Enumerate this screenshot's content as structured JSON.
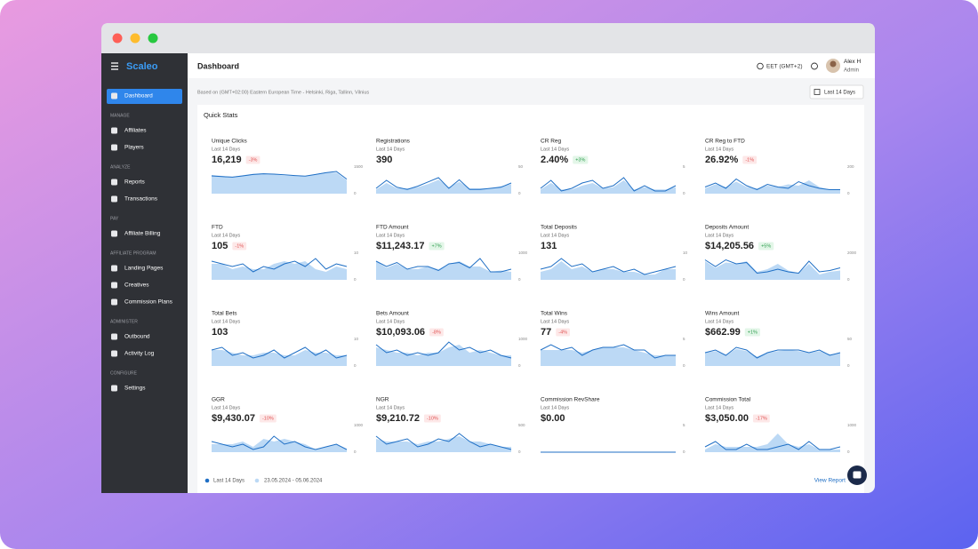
{
  "brand": "Scaleo",
  "nav": [
    {
      "items": [
        "Dashboard"
      ]
    },
    {
      "label": "MANAGE",
      "items": [
        "Affiliates",
        "Players"
      ]
    },
    {
      "label": "ANALYZE",
      "items": [
        "Reports",
        "Transactions"
      ]
    },
    {
      "label": "PAY",
      "items": [
        "Affiliate Billing"
      ]
    },
    {
      "label": "AFFILIATE PROGRAM",
      "items": [
        "Landing Pages",
        "Creatives",
        "Commission Plans"
      ]
    },
    {
      "label": "ADMINISTER",
      "items": [
        "Outbound",
        "Activity Log"
      ]
    },
    {
      "label": "CONFIGURE",
      "items": [
        "Settings"
      ]
    }
  ],
  "header": {
    "title": "Dashboard",
    "timezone": "EET (GMT+2)",
    "user": {
      "name": "Alex H",
      "role": "Admin"
    }
  },
  "subheader": {
    "note": "Based on (GMT+02:00) Eastern European Time - Helsinki, Riga, Tallinn, Vilnius",
    "range_button": "Last 14 Days"
  },
  "quick_stats": {
    "title": "Quick Stats",
    "cards": [
      {
        "title": "Unique Clicks",
        "period": "Last 14 Days",
        "value": "16,219",
        "change": "-3%",
        "yticks": [
          0,
          1500
        ],
        "line": [
          1000,
          960,
          930,
          1000,
          1080,
          1120,
          1100,
          1060,
          1020,
          990,
          1080,
          1180,
          1250,
          820
        ],
        "area": [
          1050,
          1000,
          950,
          1040,
          1120,
          1150,
          1090,
          1020,
          1000,
          960,
          1100,
          1200,
          1180,
          760
        ]
      },
      {
        "title": "Registrations",
        "period": "Last 14 Days",
        "value": "390",
        "yticks": [
          0,
          50
        ],
        "line": [
          10,
          25,
          12,
          8,
          14,
          22,
          30,
          10,
          26,
          8,
          8,
          10,
          12,
          20
        ],
        "area": [
          8,
          20,
          10,
          10,
          12,
          18,
          26,
          12,
          22,
          10,
          10,
          10,
          14,
          18
        ]
      },
      {
        "title": "CR Reg",
        "period": "Last 14 Days",
        "value": "2.40%",
        "change": "+3%",
        "yticks": [
          0,
          5
        ],
        "line": [
          1,
          2.5,
          0.5,
          1,
          2,
          2.5,
          1,
          1.5,
          3,
          0.5,
          1.5,
          0.5,
          0.5,
          1.5
        ],
        "area": [
          0.8,
          2,
          0.8,
          0.8,
          1.5,
          2,
          1,
          1.2,
          2.5,
          0.8,
          1.2,
          0.8,
          0.8,
          1.2
        ]
      },
      {
        "title": "CR Reg to FTD",
        "period": "Last 14 Days",
        "value": "26.92%",
        "change": "-1%",
        "yticks": [
          0,
          200
        ],
        "line": [
          50,
          80,
          40,
          110,
          60,
          30,
          70,
          50,
          40,
          90,
          60,
          40,
          30,
          30
        ],
        "area": [
          40,
          70,
          50,
          90,
          50,
          40,
          60,
          50,
          70,
          60,
          100,
          50,
          30,
          30
        ]
      },
      {
        "title": "FTD",
        "period": "Last 14 Days",
        "value": "105",
        "change": "-1%",
        "yticks": [
          0,
          10
        ],
        "line": [
          7,
          6,
          5,
          6,
          3,
          5,
          4,
          6,
          7,
          5,
          8,
          4,
          6,
          5
        ],
        "area": [
          6,
          6,
          4,
          5,
          4,
          4,
          6,
          7,
          6,
          7,
          4,
          3,
          5,
          4
        ]
      },
      {
        "title": "FTD Amount",
        "period": "Last 14 Days",
        "value": "$11,243.17",
        "change": "+7%",
        "yticks": [
          0,
          1000
        ],
        "line": [
          700,
          500,
          650,
          400,
          500,
          500,
          350,
          600,
          650,
          450,
          800,
          300,
          300,
          400
        ],
        "area": [
          700,
          450,
          600,
          400,
          400,
          500,
          400,
          600,
          700,
          500,
          500,
          300,
          350,
          300
        ]
      },
      {
        "title": "Total Deposits",
        "period": "Last 14 Days",
        "value": "131",
        "yticks": [
          0,
          10
        ],
        "line": [
          4,
          5,
          8,
          5,
          6,
          3,
          4,
          5,
          3,
          4,
          2,
          3,
          4,
          5
        ],
        "area": [
          3,
          4,
          7,
          4,
          5,
          3,
          4,
          4,
          3,
          3,
          2,
          2,
          4,
          4
        ]
      },
      {
        "title": "Deposits Amount",
        "period": "Last 14 Days",
        "value": "$14,205.56",
        "change": "+5%",
        "yticks": [
          0,
          2000
        ],
        "line": [
          1500,
          1000,
          1500,
          1200,
          1300,
          500,
          600,
          800,
          600,
          500,
          1400,
          600,
          700,
          900
        ],
        "area": [
          1400,
          900,
          1300,
          1200,
          1400,
          600,
          800,
          1200,
          700,
          500,
          1200,
          400,
          600,
          700
        ]
      },
      {
        "title": "Total Bets",
        "period": "Last 14 Days",
        "value": "103",
        "yticks": [
          0,
          10
        ],
        "line": [
          6,
          7,
          4,
          5,
          3,
          4,
          6,
          3,
          5,
          7,
          4,
          6,
          3,
          4
        ],
        "area": [
          6,
          6,
          5,
          4,
          4,
          5,
          5,
          4,
          4,
          6,
          5,
          5,
          4,
          4
        ]
      },
      {
        "title": "Bets Amount",
        "period": "Last 14 Days",
        "value": "$10,093.06",
        "change": "-8%",
        "yticks": [
          0,
          1000
        ],
        "line": [
          800,
          500,
          600,
          400,
          500,
          400,
          500,
          900,
          600,
          700,
          500,
          600,
          400,
          300
        ],
        "area": [
          700,
          600,
          500,
          500,
          400,
          500,
          500,
          700,
          800,
          500,
          600,
          500,
          400,
          400
        ]
      },
      {
        "title": "Total Wins",
        "period": "Last 14 Days",
        "value": "77",
        "change": "-4%",
        "yticks": [
          0,
          5
        ],
        "line": [
          3,
          4,
          3,
          3.5,
          2,
          3,
          3.5,
          3.5,
          4,
          3,
          3,
          1.5,
          2,
          2
        ],
        "area": [
          3,
          3,
          3,
          3,
          2.5,
          3,
          3.5,
          3.5,
          3.5,
          3,
          2.5,
          2,
          2,
          2
        ]
      },
      {
        "title": "Wins Amount",
        "period": "Last 14 Days",
        "value": "$662.99",
        "change": "+1%",
        "yticks": [
          0,
          50
        ],
        "line": [
          25,
          30,
          20,
          35,
          30,
          15,
          25,
          30,
          30,
          30,
          25,
          30,
          20,
          25
        ],
        "area": [
          25,
          28,
          20,
          32,
          28,
          18,
          25,
          28,
          30,
          28,
          25,
          28,
          22,
          24
        ]
      },
      {
        "title": "GGR",
        "period": "Last 14 Days",
        "value": "$9,430.07",
        "change": "-10%",
        "yticks": [
          0,
          1000
        ],
        "line": [
          400,
          300,
          200,
          300,
          100,
          200,
          600,
          300,
          400,
          200,
          100,
          200,
          300,
          100
        ],
        "area": [
          300,
          300,
          300,
          400,
          200,
          500,
          400,
          500,
          400,
          300,
          100,
          200,
          300,
          100
        ]
      },
      {
        "title": "NGR",
        "period": "Last 14 Days",
        "value": "$9,210.72",
        "change": "-10%",
        "yticks": [
          0,
          500
        ],
        "line": [
          300,
          150,
          200,
          250,
          100,
          150,
          250,
          200,
          350,
          200,
          100,
          150,
          100,
          50
        ],
        "area": [
          250,
          200,
          200,
          200,
          150,
          200,
          200,
          250,
          300,
          200,
          200,
          150,
          100,
          100
        ]
      },
      {
        "title": "Commission RevShare",
        "period": "Last 14 Days",
        "value": "$0.00",
        "yticks": [
          0,
          5
        ],
        "line": [
          0,
          0,
          0,
          0,
          0,
          0,
          0,
          0,
          0,
          0,
          0,
          0,
          0,
          0
        ],
        "area": [
          0,
          0,
          0,
          0,
          0,
          0,
          0,
          0,
          0,
          0,
          0,
          0,
          0,
          0
        ]
      },
      {
        "title": "Commission Total",
        "period": "Last 14 Days",
        "value": "$3,050.00",
        "change": "-17%",
        "yticks": [
          0,
          1000
        ],
        "line": [
          200,
          400,
          100,
          100,
          300,
          100,
          100,
          200,
          300,
          100,
          400,
          100,
          100,
          200
        ],
        "area": [
          100,
          300,
          200,
          200,
          200,
          200,
          300,
          700,
          300,
          200,
          300,
          100,
          100,
          100
        ]
      }
    ]
  },
  "legend": {
    "current": "Last 14 Days",
    "previous": "23.05.2024 - 05.06.2024"
  },
  "view_report": "View Report"
}
